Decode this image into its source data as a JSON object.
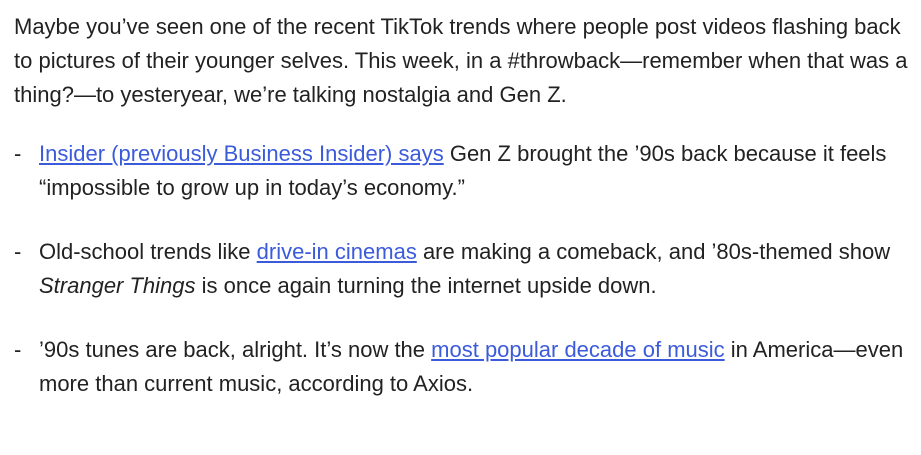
{
  "intro": {
    "text": "Maybe you’ve seen one of the recent TikTok trends where people post videos flashing back to pictures of their younger selves. This week, in a #throwback—remember when that was a thing?—to yesteryear, we’re talking nostalgia and Gen Z."
  },
  "bullet_marker": "-",
  "bullets": [
    {
      "link_text": "Insider (previously Business Insider) says",
      "after_text": " Gen Z brought the ’90s back because it feels “impossible to grow up in today’s economy.”"
    },
    {
      "before_text": "Old-school trends like ",
      "link_text": "drive-in cinemas",
      "middle_text": " are making a comeback, and ’80s-themed show ",
      "italic_text": "Stranger Things",
      "after_text": " is once again turning the internet upside down."
    },
    {
      "before_text": "’90s tunes are back, alright. It’s now the ",
      "link_text": "most popular decade of music",
      "after_text": " in America—even more than current music, according to Axios."
    }
  ],
  "colors": {
    "text": "#222222",
    "link": "#3b5bdb"
  }
}
